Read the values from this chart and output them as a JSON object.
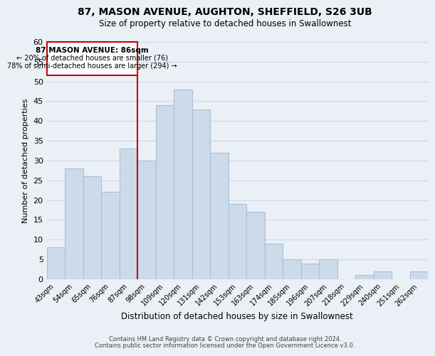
{
  "title": "87, MASON AVENUE, AUGHTON, SHEFFIELD, S26 3UB",
  "subtitle": "Size of property relative to detached houses in Swallownest",
  "xlabel": "Distribution of detached houses by size in Swallownest",
  "ylabel": "Number of detached properties",
  "bin_labels": [
    "43sqm",
    "54sqm",
    "65sqm",
    "76sqm",
    "87sqm",
    "98sqm",
    "109sqm",
    "120sqm",
    "131sqm",
    "142sqm",
    "153sqm",
    "163sqm",
    "174sqm",
    "185sqm",
    "196sqm",
    "207sqm",
    "218sqm",
    "229sqm",
    "240sqm",
    "251sqm",
    "262sqm"
  ],
  "bar_heights": [
    8,
    28,
    26,
    22,
    33,
    30,
    44,
    48,
    43,
    32,
    19,
    17,
    9,
    5,
    4,
    5,
    0,
    1,
    2,
    0,
    2
  ],
  "bar_color": "#ccdaea",
  "bar_edgecolor": "#a8c0d8",
  "highlight_bar_index": 4,
  "highlight_color": "#cc0000",
  "ylim": [
    0,
    60
  ],
  "yticks": [
    0,
    5,
    10,
    15,
    20,
    25,
    30,
    35,
    40,
    45,
    50,
    55,
    60
  ],
  "annotation_title": "87 MASON AVENUE: 86sqm",
  "annotation_line1": "← 20% of detached houses are smaller (76)",
  "annotation_line2": "78% of semi-detached houses are larger (294) →",
  "footer_line1": "Contains HM Land Registry data © Crown copyright and database right 2024.",
  "footer_line2": "Contains public sector information licensed under the Open Government Licence v3.0.",
  "background_color": "#eaf0f6",
  "plot_background": "#eaf0f6",
  "grid_color": "#c8d8e8"
}
